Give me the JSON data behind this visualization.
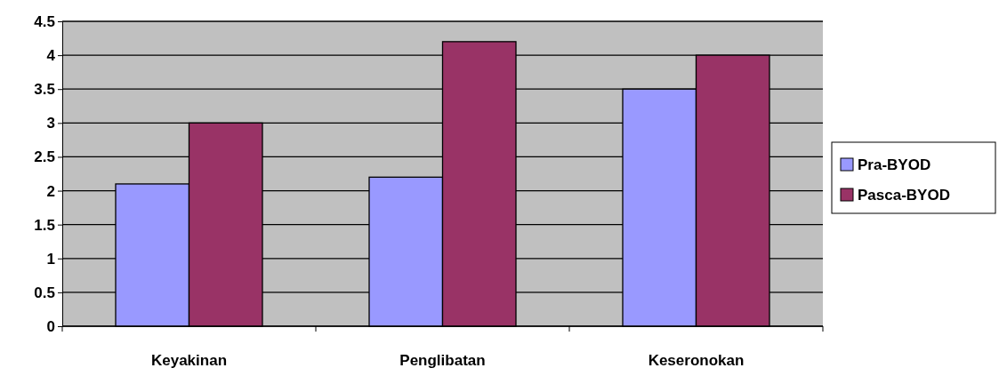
{
  "chart_data": {
    "type": "bar",
    "categories": [
      "Keyakinan",
      "Penglibatan",
      "Keseronokan"
    ],
    "series": [
      {
        "name": "Pra-BYOD",
        "color": "#9999ff",
        "values": [
          2.1,
          2.2,
          3.5
        ]
      },
      {
        "name": "Pasca-BYOD",
        "color": "#993366",
        "values": [
          3.0,
          4.2,
          4.0
        ]
      }
    ],
    "ylim": [
      0,
      4.5
    ],
    "yticks": [
      0,
      0.5,
      1,
      1.5,
      2,
      2.5,
      3,
      3.5,
      4,
      4.5
    ],
    "grid": "y",
    "legend": "right"
  }
}
